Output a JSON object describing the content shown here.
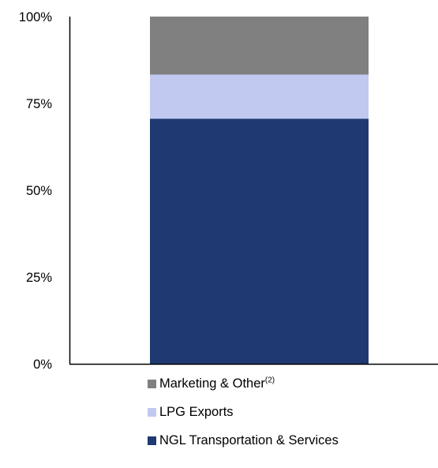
{
  "chart_data": {
    "type": "bar",
    "stacked": true,
    "ylim": [
      0,
      100
    ],
    "y_ticks": [
      "0%",
      "25%",
      "50%",
      "75%",
      "100%"
    ],
    "y_tick_values": [
      0,
      25,
      50,
      75,
      100
    ],
    "grid": false,
    "legend_placement": "bottom",
    "series": [
      {
        "name": "NGL Transportation & Services",
        "value": 70.6,
        "color": "#1f3a73"
      },
      {
        "name": "LPG Exports",
        "value": 12.7,
        "color": "#c1c9f1"
      },
      {
        "name": "Marketing & Other",
        "superscript": "(2)",
        "value": 16.7,
        "color": "#808080"
      }
    ]
  }
}
